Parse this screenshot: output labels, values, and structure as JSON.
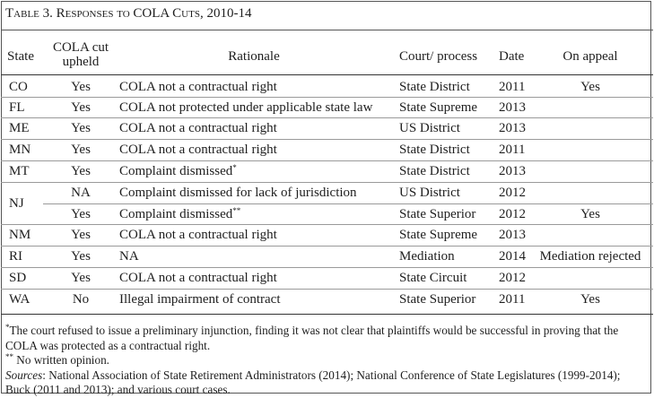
{
  "caption": {
    "prefix": "Table 3. ",
    "title": "Responses to COLA Cuts",
    "suffix": ", 2010-14"
  },
  "columns": [
    "State",
    "COLA cut upheld",
    "Rationale",
    "Court/ process",
    "Date",
    "On appeal"
  ],
  "rows": [
    {
      "state": "CO",
      "upheld": "Yes",
      "rationale": "COLA not a contractual right",
      "mark": "",
      "court": "State District",
      "date": "2011",
      "appeal": "Yes"
    },
    {
      "state": "FL",
      "upheld": "Yes",
      "rationale": "COLA not protected under applicable state law",
      "mark": "",
      "court": "State Supreme",
      "date": "2013",
      "appeal": ""
    },
    {
      "state": "ME",
      "upheld": "Yes",
      "rationale": "COLA not a contractual right",
      "mark": "",
      "court": "US District",
      "date": "2013",
      "appeal": ""
    },
    {
      "state": "MN",
      "upheld": "Yes",
      "rationale": "COLA not a contractual right",
      "mark": "",
      "court": "State District",
      "date": "2011",
      "appeal": ""
    },
    {
      "state": "MT",
      "upheld": "Yes",
      "rationale": "Complaint dismissed",
      "mark": "*",
      "court": "State District",
      "date": "2013",
      "appeal": ""
    },
    {
      "state": "NJ",
      "upheld": "NA",
      "rationale": "Complaint dismissed for lack of jurisdiction",
      "mark": "",
      "court": "US District",
      "date": "2012",
      "appeal": ""
    },
    {
      "state": "",
      "upheld": "Yes",
      "rationale": "Complaint dismissed",
      "mark": "**",
      "court": "State Superior",
      "date": "2012",
      "appeal": "Yes"
    },
    {
      "state": "NM",
      "upheld": "Yes",
      "rationale": "COLA not a contractual right",
      "mark": "",
      "court": "State Supreme",
      "date": "2013",
      "appeal": ""
    },
    {
      "state": "RI",
      "upheld": "Yes",
      "rationale": "NA",
      "mark": "",
      "court": "Mediation",
      "date": "2014",
      "appeal": "Mediation rejected"
    },
    {
      "state": "SD",
      "upheld": "Yes",
      "rationale": "COLA not a contractual right",
      "mark": "",
      "court": "State Circuit",
      "date": "2012",
      "appeal": ""
    },
    {
      "state": "WA",
      "upheld": "No",
      "rationale": "Illegal impairment of contract",
      "mark": "",
      "court": "State Superior",
      "date": "2011",
      "appeal": "Yes"
    }
  ],
  "notes": {
    "note1_mark": "*",
    "note1": "The court refused to issue a preliminary injunction, finding it was not clear that plaintiffs would be successful in proving that the COLA was protected as a contractual right.",
    "note2_mark": "**",
    "note2": " No written opinion.",
    "sources_label": "Sources",
    "sources": ": National Association of State Retirement Administrators (2014); National Conference of State Legislatures (1999-2014); Buck (2011 and 2013); and various court cases."
  }
}
